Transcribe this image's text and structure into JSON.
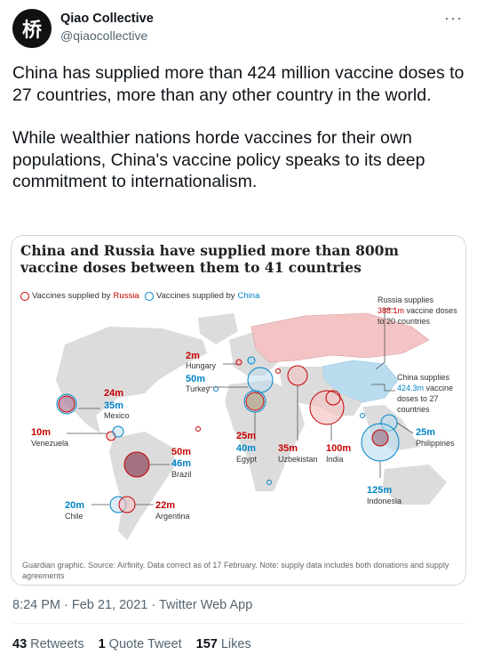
{
  "account": {
    "display_name": "Qiao Collective",
    "handle": "@qiaocollective",
    "avatar_glyph": "桥"
  },
  "tweet": {
    "paragraphs": [
      "China has supplied more than 424 million vaccine doses to 27 countries, more than any other country in the world.",
      "While wealthier nations horde vaccines for their own populations, China's vaccine policy speaks to its deep commitment to internationalism."
    ]
  },
  "graphic": {
    "title": "China and Russia have supplied more than 800m vaccine doses between them to 41 countries",
    "legend_russia_prefix": "Vaccines supplied by ",
    "legend_russia_name": "Russia",
    "legend_china_prefix": "Vaccines supplied by ",
    "legend_china_name": "China",
    "russia_callout": [
      "Russia supplies",
      "388.1m",
      " vaccine doses",
      "to 20 countries"
    ],
    "china_callout": [
      "China supplies",
      "424.3m",
      " vaccine",
      "doses to 27",
      "countries"
    ],
    "labels": [
      {
        "russia": "2m",
        "china": "",
        "country": "Hungary"
      },
      {
        "russia": "",
        "china": "50m",
        "country": "Turkey"
      },
      {
        "russia": "24m",
        "china": "35m",
        "country": "Mexico"
      },
      {
        "russia": "10m",
        "china": "",
        "country": "Venezuela"
      },
      {
        "russia": "50m",
        "china": "46m",
        "country": "Brazil"
      },
      {
        "russia": "25m",
        "china": "40m",
        "country": "Egypt"
      },
      {
        "russia": "35m",
        "china": "",
        "country": "Uzbekistan"
      },
      {
        "russia": "100m",
        "china": "",
        "country": "India"
      },
      {
        "russia": "",
        "china": "25m",
        "country": "Philippines"
      },
      {
        "russia": "",
        "china": "125m",
        "country": "Indonesia"
      },
      {
        "russia": "",
        "china": "20m",
        "country": "Chile"
      },
      {
        "russia": "22m",
        "china": "",
        "country": "Argentina"
      }
    ],
    "source_note": "Guardian graphic. Source: Airfinity. Data correct as of 17 February. Note: supply data includes both donations and supply agreements",
    "colors": {
      "russia": "#c70000",
      "china": "#0084c6",
      "land": "#dcdcdc",
      "russia_fill": "#f4c4c4",
      "china_fill": "#b9dcef"
    }
  },
  "meta": {
    "time": "8:24 PM · Feb 21, 2021 · Twitter Web App"
  },
  "stats": {
    "retweets_count": "43",
    "retweets_label": "Retweets",
    "quotes_count": "1",
    "quotes_label": "Quote Tweet",
    "likes_count": "157",
    "likes_label": "Likes"
  }
}
